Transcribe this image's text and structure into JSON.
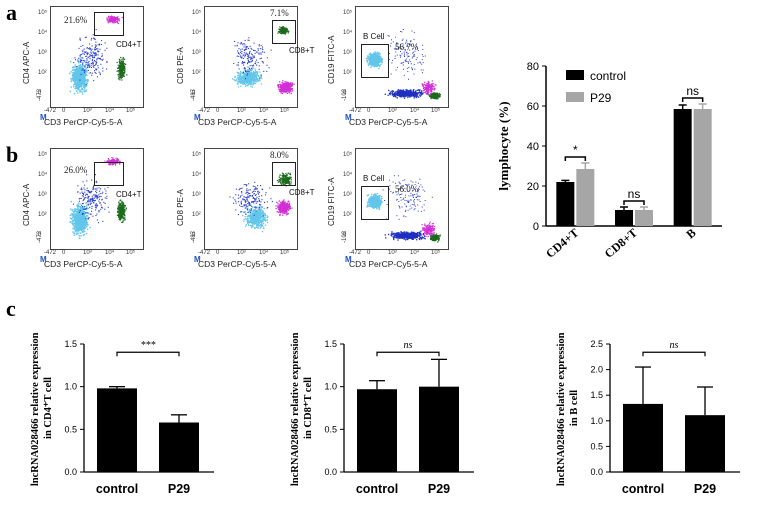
{
  "panel_labels": {
    "a": "a",
    "b": "b",
    "c": "c"
  },
  "flow_plots": {
    "axis_cd3": "CD3 PerCP-Cy5-5-A",
    "axis_cd4": "CD4 APC-A",
    "axis_cd8": "CD8 PE-A",
    "axis_cd19": "CD19 FITC-A",
    "m_marker": "M",
    "ticks_x": [
      "-472",
      "0",
      "10³",
      "10⁴",
      "10⁵"
    ],
    "ticks_y": [
      "10⁵",
      "10⁴",
      "10³",
      "10²",
      "0"
    ],
    "ticks_y_low": {
      "cd4": "-472",
      "cd8": "-487",
      "cd19": "-102"
    },
    "gate_cd4": "CD4+T",
    "gate_cd8": "CD8+T",
    "gate_b": "B Cell",
    "row_a": {
      "cd4_pct": "21.6%",
      "cd8_pct": "7.1%",
      "b_pct": "56.7%"
    },
    "row_b": {
      "cd4_pct": "26.0%",
      "cd8_pct": "8.0%",
      "b_pct": "56.0%"
    }
  },
  "chart_data": [
    {
      "type": "bar",
      "title": "",
      "ylabel": "lymphocyte (%)",
      "xlabel": "",
      "ylim": [
        0,
        80
      ],
      "yticks": [
        "0",
        "20",
        "40",
        "60",
        "80"
      ],
      "categories": [
        "CD4+T",
        "CD8+T",
        "B"
      ],
      "series": [
        {
          "name": "control",
          "color": "#000000",
          "values": [
            22,
            8,
            58.5
          ],
          "errors": [
            0.8,
            1.5,
            2
          ]
        },
        {
          "name": "P29",
          "color": "#a6a6a6",
          "values": [
            28.5,
            8,
            58.5
          ],
          "errors": [
            3,
            1.5,
            2.5
          ]
        }
      ],
      "significance": [
        "*",
        "ns",
        "ns"
      ],
      "legend": "top-right"
    },
    {
      "type": "bar",
      "ylabel": "lncRNA028466 relative expression in CD4⁺T cell",
      "ylim": [
        0,
        1.5
      ],
      "yticks": [
        "0.0",
        "0.5",
        "1.0",
        "1.5"
      ],
      "categories": [
        "control",
        "P29"
      ],
      "values": [
        0.98,
        0.58
      ],
      "errors": [
        0.02,
        0.09
      ],
      "significance": "***"
    },
    {
      "type": "bar",
      "ylabel": "lncRNA028466 relative expression in CD8⁺T cell",
      "ylim": [
        0,
        1.5
      ],
      "yticks": [
        "0.0",
        "0.5",
        "1.0",
        "1.5"
      ],
      "categories": [
        "control",
        "P29"
      ],
      "values": [
        0.97,
        1.0
      ],
      "errors": [
        0.1,
        0.32
      ],
      "significance": "ns"
    },
    {
      "type": "bar",
      "ylabel": "lncRNA028466 relative expression in B cell",
      "ylim": [
        0,
        2.5
      ],
      "yticks": [
        "0.0",
        "0.5",
        "1.0",
        "1.5",
        "2.0",
        "2.5"
      ],
      "categories": [
        "control",
        "P29"
      ],
      "values": [
        1.33,
        1.11
      ],
      "errors": [
        0.72,
        0.55
      ],
      "significance": "ns"
    }
  ]
}
